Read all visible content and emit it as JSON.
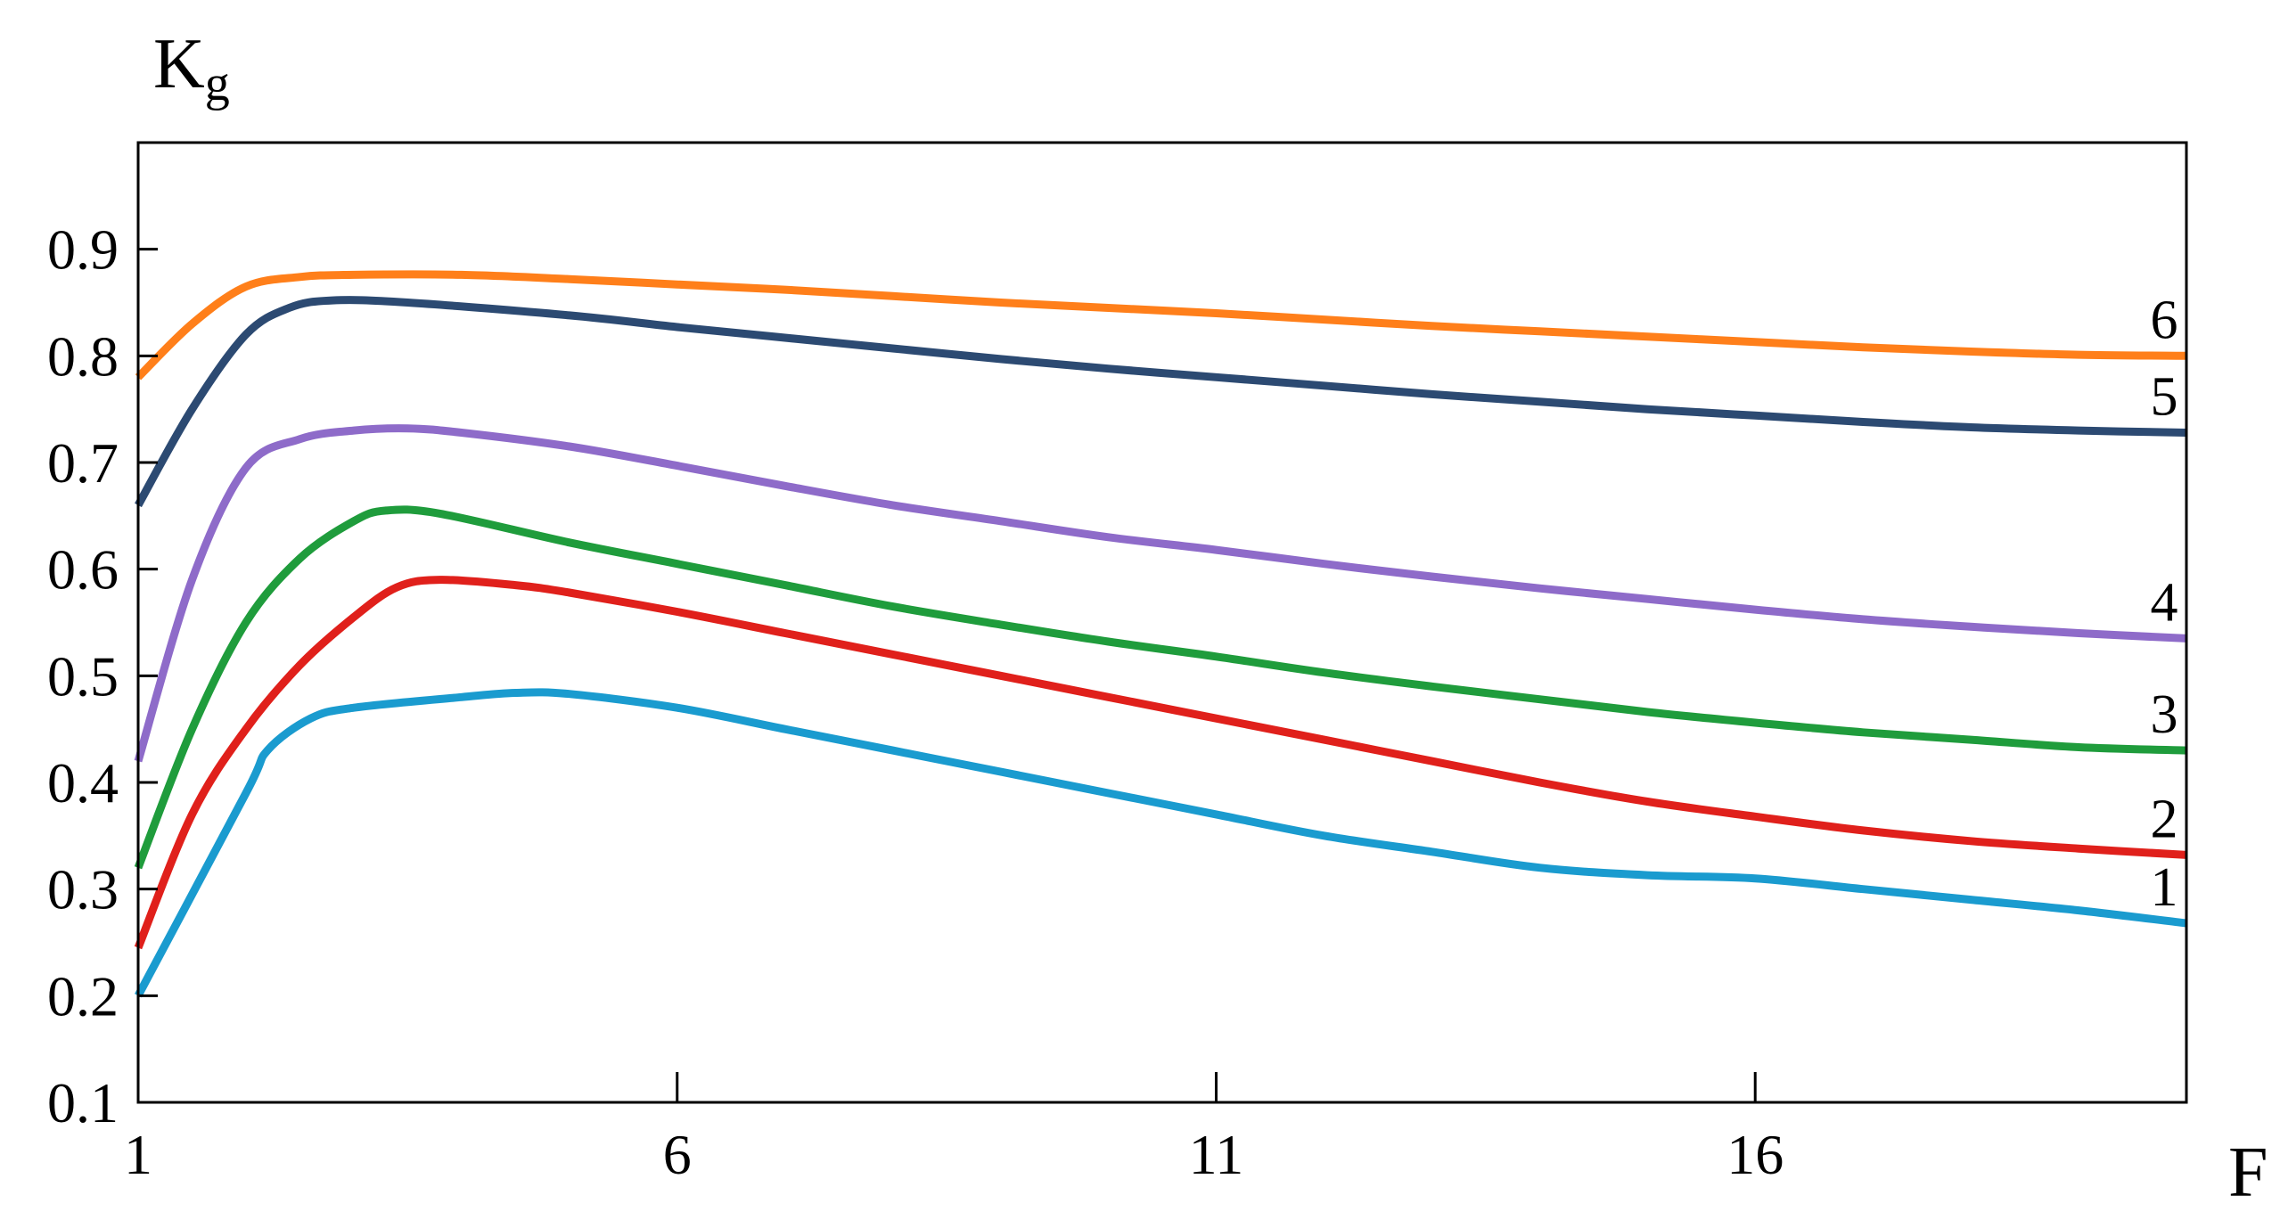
{
  "chart_data": {
    "type": "line",
    "title": "",
    "xlabel": "F",
    "ylabel": {
      "main": "K",
      "sub": "g"
    },
    "xlim": [
      1,
      20
    ],
    "ylim": [
      0.1,
      1.0
    ],
    "x_ticks": [
      1,
      6,
      11,
      16
    ],
    "x_tick_labels": [
      "1",
      "6",
      "11",
      "16"
    ],
    "y_ticks": [
      0.1,
      0.2,
      0.3,
      0.4,
      0.5,
      0.6,
      0.7,
      0.8,
      0.9
    ],
    "y_tick_labels": [
      "0.1",
      "0.2",
      "0.3",
      "0.4",
      "0.5",
      "0.6",
      "0.7",
      "0.8",
      "0.9"
    ],
    "grid": false,
    "legend": "curve numbers at right end",
    "series": [
      {
        "label": "1",
        "color": "#1a9bcf",
        "points": [
          [
            1.0,
            0.2
          ],
          [
            2.0,
            0.39
          ],
          [
            2.2,
            0.43
          ],
          [
            2.6,
            0.46
          ],
          [
            3.0,
            0.47
          ],
          [
            4.0,
            0.48
          ],
          [
            4.5,
            0.484
          ],
          [
            5.0,
            0.483
          ],
          [
            6.0,
            0.47
          ],
          [
            7.0,
            0.45
          ],
          [
            8.0,
            0.43
          ],
          [
            9.0,
            0.41
          ],
          [
            10.0,
            0.39
          ],
          [
            11.0,
            0.37
          ],
          [
            12.0,
            0.35
          ],
          [
            13.0,
            0.335
          ],
          [
            14.0,
            0.32
          ],
          [
            15.0,
            0.313
          ],
          [
            16.0,
            0.31
          ],
          [
            17.0,
            0.3
          ],
          [
            18.0,
            0.29
          ],
          [
            19.0,
            0.28
          ],
          [
            20.0,
            0.268
          ]
        ]
      },
      {
        "label": "2",
        "color": "#e0201b",
        "points": [
          [
            1.0,
            0.245
          ],
          [
            1.5,
            0.37
          ],
          [
            2.0,
            0.45
          ],
          [
            2.5,
            0.51
          ],
          [
            3.0,
            0.555
          ],
          [
            3.4,
            0.583
          ],
          [
            3.8,
            0.59
          ],
          [
            4.5,
            0.585
          ],
          [
            5.0,
            0.578
          ],
          [
            6.0,
            0.56
          ],
          [
            7.0,
            0.54
          ],
          [
            8.0,
            0.52
          ],
          [
            9.0,
            0.5
          ],
          [
            10.0,
            0.48
          ],
          [
            11.0,
            0.46
          ],
          [
            12.0,
            0.44
          ],
          [
            13.0,
            0.42
          ],
          [
            14.0,
            0.4
          ],
          [
            15.0,
            0.382
          ],
          [
            16.0,
            0.368
          ],
          [
            17.0,
            0.355
          ],
          [
            18.0,
            0.345
          ],
          [
            19.0,
            0.338
          ],
          [
            20.0,
            0.332
          ]
        ]
      },
      {
        "label": "3",
        "color": "#1f9c3c",
        "points": [
          [
            1.0,
            0.32
          ],
          [
            1.5,
            0.45
          ],
          [
            2.0,
            0.55
          ],
          [
            2.5,
            0.61
          ],
          [
            3.0,
            0.645
          ],
          [
            3.3,
            0.655
          ],
          [
            3.8,
            0.652
          ],
          [
            5.0,
            0.625
          ],
          [
            6.0,
            0.605
          ],
          [
            7.0,
            0.585
          ],
          [
            8.0,
            0.565
          ],
          [
            9.0,
            0.548
          ],
          [
            10.0,
            0.532
          ],
          [
            11.0,
            0.518
          ],
          [
            12.0,
            0.503
          ],
          [
            13.0,
            0.49
          ],
          [
            14.0,
            0.478
          ],
          [
            15.0,
            0.466
          ],
          [
            16.0,
            0.456
          ],
          [
            17.0,
            0.447
          ],
          [
            18.0,
            0.44
          ],
          [
            19.0,
            0.433
          ],
          [
            20.0,
            0.43
          ]
        ]
      },
      {
        "label": "4",
        "color": "#8e6bc9",
        "points": [
          [
            1.0,
            0.42
          ],
          [
            1.5,
            0.59
          ],
          [
            2.0,
            0.695
          ],
          [
            2.5,
            0.722
          ],
          [
            3.0,
            0.73
          ],
          [
            3.5,
            0.732
          ],
          [
            4.0,
            0.728
          ],
          [
            5.0,
            0.715
          ],
          [
            6.0,
            0.697
          ],
          [
            7.0,
            0.678
          ],
          [
            8.0,
            0.66
          ],
          [
            9.0,
            0.645
          ],
          [
            10.0,
            0.63
          ],
          [
            11.0,
            0.618
          ],
          [
            12.0,
            0.605
          ],
          [
            13.0,
            0.593
          ],
          [
            14.0,
            0.582
          ],
          [
            15.0,
            0.572
          ],
          [
            16.0,
            0.562
          ],
          [
            17.0,
            0.553
          ],
          [
            18.0,
            0.546
          ],
          [
            19.0,
            0.54
          ],
          [
            20.0,
            0.535
          ]
        ]
      },
      {
        "label": "5",
        "color": "#2c4a72",
        "points": [
          [
            1.0,
            0.66
          ],
          [
            1.5,
            0.75
          ],
          [
            2.0,
            0.82
          ],
          [
            2.4,
            0.845
          ],
          [
            2.8,
            0.852
          ],
          [
            3.5,
            0.85
          ],
          [
            5.0,
            0.838
          ],
          [
            6.0,
            0.827
          ],
          [
            7.0,
            0.817
          ],
          [
            8.0,
            0.807
          ],
          [
            9.0,
            0.797
          ],
          [
            10.0,
            0.788
          ],
          [
            11.0,
            0.78
          ],
          [
            12.0,
            0.772
          ],
          [
            13.0,
            0.764
          ],
          [
            14.0,
            0.757
          ],
          [
            15.0,
            0.75
          ],
          [
            16.0,
            0.744
          ],
          [
            17.0,
            0.738
          ],
          [
            18.0,
            0.733
          ],
          [
            19.0,
            0.73
          ],
          [
            20.0,
            0.728
          ]
        ]
      },
      {
        "label": "6",
        "color": "#ff7f1a",
        "points": [
          [
            1.0,
            0.78
          ],
          [
            1.5,
            0.83
          ],
          [
            2.0,
            0.865
          ],
          [
            2.5,
            0.874
          ],
          [
            3.0,
            0.876
          ],
          [
            4.0,
            0.876
          ],
          [
            5.0,
            0.872
          ],
          [
            6.0,
            0.867
          ],
          [
            7.0,
            0.862
          ],
          [
            8.0,
            0.856
          ],
          [
            9.0,
            0.85
          ],
          [
            10.0,
            0.845
          ],
          [
            11.0,
            0.84
          ],
          [
            12.0,
            0.834
          ],
          [
            13.0,
            0.828
          ],
          [
            14.0,
            0.823
          ],
          [
            15.0,
            0.818
          ],
          [
            16.0,
            0.813
          ],
          [
            17.0,
            0.808
          ],
          [
            18.0,
            0.804
          ],
          [
            19.0,
            0.801
          ],
          [
            20.0,
            0.8
          ]
        ]
      }
    ]
  }
}
